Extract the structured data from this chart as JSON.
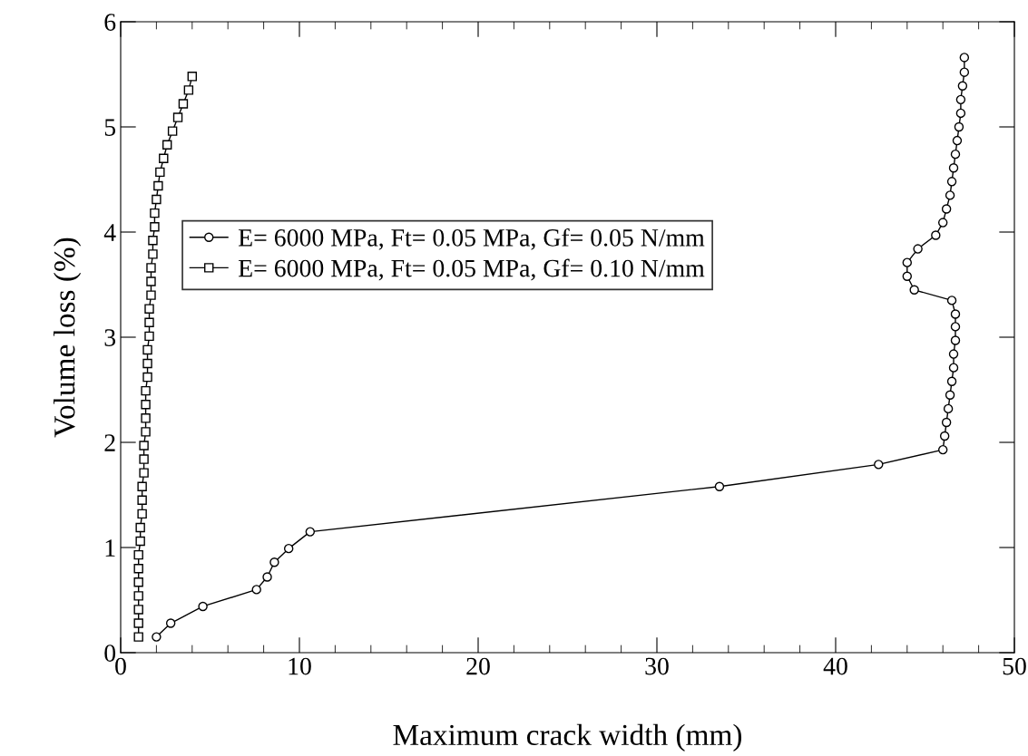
{
  "chart_data": {
    "type": "line",
    "xlabel": "Maximum crack width (mm)",
    "ylabel": "Volume loss (%)",
    "xlim": [
      0,
      50
    ],
    "xticks": [
      0,
      10,
      20,
      30,
      40,
      50
    ],
    "ylim": [
      0,
      6
    ],
    "yticks": [
      0,
      1,
      2,
      3,
      4,
      5,
      6
    ],
    "grid": false,
    "legend": "left",
    "series": [
      {
        "name": "E= 6000 MPa, Ft= 0.05 MPa, Gf= 0.05 N/mm",
        "color": "#000000",
        "marker": "circle",
        "x": [
          2.0,
          2.8,
          4.6,
          7.6,
          8.2,
          8.6,
          9.4,
          10.6,
          33.5,
          42.4,
          46.0,
          46.1,
          46.2,
          46.3,
          46.4,
          46.5,
          46.6,
          46.6,
          46.7,
          46.7,
          46.7,
          46.5,
          44.4,
          44.0,
          44.0,
          44.6,
          45.6,
          46.0,
          46.2,
          46.4,
          46.5,
          46.6,
          46.7,
          46.8,
          46.9,
          47.0,
          47.0,
          47.1,
          47.2,
          47.2
        ],
        "values": [
          0.15,
          0.28,
          0.44,
          0.6,
          0.72,
          0.86,
          0.99,
          1.15,
          1.58,
          1.79,
          1.93,
          2.06,
          2.19,
          2.32,
          2.45,
          2.58,
          2.71,
          2.84,
          2.97,
          3.1,
          3.22,
          3.35,
          3.45,
          3.58,
          3.71,
          3.84,
          3.97,
          4.09,
          4.22,
          4.35,
          4.48,
          4.61,
          4.74,
          4.87,
          5.0,
          5.13,
          5.26,
          5.39,
          5.52,
          5.66
        ]
      },
      {
        "name": "E= 6000 MPa, Ft= 0.05 MPa, Gf= 0.10 N/mm",
        "color": "#000000",
        "marker": "square",
        "x": [
          1.0,
          1.0,
          1.0,
          1.0,
          1.0,
          1.0,
          1.0,
          1.1,
          1.1,
          1.2,
          1.2,
          1.2,
          1.3,
          1.3,
          1.3,
          1.4,
          1.4,
          1.4,
          1.4,
          1.5,
          1.5,
          1.5,
          1.6,
          1.6,
          1.6,
          1.7,
          1.7,
          1.7,
          1.8,
          1.8,
          1.9,
          1.9,
          2.0,
          2.1,
          2.2,
          2.4,
          2.6,
          2.9,
          3.2,
          3.5,
          3.8,
          4.0
        ],
        "values": [
          0.15,
          0.28,
          0.41,
          0.54,
          0.67,
          0.8,
          0.93,
          1.06,
          1.19,
          1.32,
          1.45,
          1.58,
          1.71,
          1.84,
          1.97,
          2.1,
          2.23,
          2.36,
          2.49,
          2.62,
          2.75,
          2.88,
          3.01,
          3.14,
          3.27,
          3.4,
          3.53,
          3.66,
          3.79,
          3.92,
          4.05,
          4.18,
          4.31,
          4.44,
          4.57,
          4.7,
          4.83,
          4.96,
          5.09,
          5.22,
          5.35,
          5.48
        ]
      }
    ]
  }
}
